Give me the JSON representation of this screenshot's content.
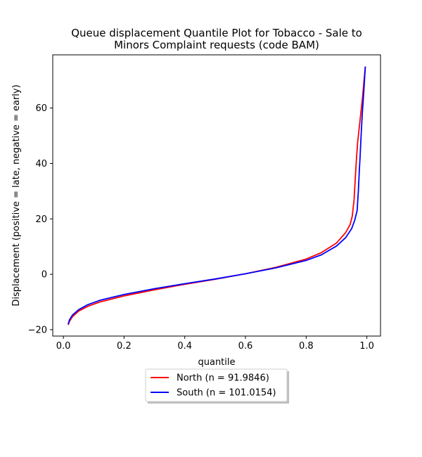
{
  "chart_data": {
    "type": "line",
    "title_line1": "Queue displacement Quantile Plot for Tobacco - Sale to",
    "title_line2": "Minors Complaint  requests (code BAM)",
    "xlabel": "quantile",
    "ylabel": "Displacement (positive = late, negative = early)",
    "xlim": [
      -0.035,
      1.045
    ],
    "ylim": [
      -22.3,
      79.2
    ],
    "xticks": [
      0.0,
      0.2,
      0.4,
      0.6,
      0.8,
      1.0
    ],
    "xtick_labels": [
      "0.0",
      "0.2",
      "0.4",
      "0.6",
      "0.8",
      "1.0"
    ],
    "yticks": [
      -20,
      0,
      20,
      40,
      60
    ],
    "ytick_labels": [
      "−20",
      "0",
      "20",
      "40",
      "60"
    ],
    "grid": false,
    "legend_position": "below plot, centered",
    "series": [
      {
        "name": "North (n = 91.9846)",
        "color": "#ff0000",
        "x": [
          0.016,
          0.02,
          0.03,
          0.05,
          0.08,
          0.12,
          0.2,
          0.3,
          0.4,
          0.5,
          0.6,
          0.7,
          0.8,
          0.85,
          0.9,
          0.93,
          0.945,
          0.952,
          0.958,
          0.962,
          0.966,
          0.97,
          0.975,
          0.98,
          0.985,
          0.99,
          0.995
        ],
        "y": [
          -18.3,
          -17.0,
          -15.3,
          -13.3,
          -11.6,
          -10.0,
          -7.8,
          -5.6,
          -3.6,
          -1.8,
          0.2,
          2.5,
          5.5,
          7.8,
          11.3,
          15.0,
          18.0,
          21.0,
          27.0,
          35.0,
          42.0,
          48.0,
          53.0,
          58.0,
          63.0,
          69.0,
          75.0
        ]
      },
      {
        "name": "South (n = 101.0154)",
        "color": "#0000ff",
        "x": [
          0.016,
          0.02,
          0.03,
          0.05,
          0.08,
          0.12,
          0.2,
          0.3,
          0.4,
          0.5,
          0.6,
          0.7,
          0.8,
          0.85,
          0.9,
          0.93,
          0.95,
          0.96,
          0.968,
          0.972,
          0.975,
          0.978,
          0.981,
          0.985,
          0.99,
          0.995
        ],
        "y": [
          -18.0,
          -16.5,
          -14.7,
          -12.8,
          -11.0,
          -9.4,
          -7.3,
          -5.2,
          -3.4,
          -1.7,
          0.2,
          2.3,
          5.0,
          7.0,
          10.2,
          13.2,
          16.5,
          19.5,
          23.0,
          30.0,
          37.0,
          43.0,
          50.0,
          58.0,
          66.0,
          75.0
        ]
      }
    ]
  }
}
